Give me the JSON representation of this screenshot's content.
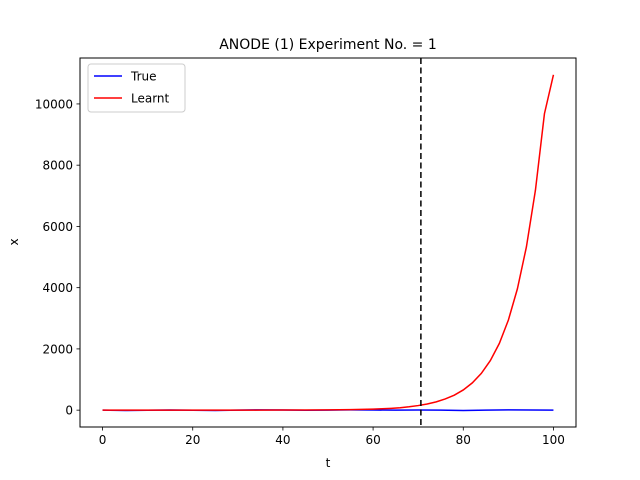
{
  "chart_data": {
    "type": "line",
    "title": "ANODE (1) Experiment No. = 1",
    "xlabel": "t",
    "ylabel": "x",
    "xlim": [
      -5,
      105
    ],
    "ylim": [
      -550,
      11500
    ],
    "xticks": [
      0,
      20,
      40,
      60,
      80,
      100
    ],
    "yticks": [
      0,
      2000,
      4000,
      6000,
      8000,
      10000
    ],
    "grid": false,
    "legend_position": "top-left",
    "vline": {
      "x": 70.6,
      "style": "dashed",
      "color": "#000000"
    },
    "series": [
      {
        "name": "True",
        "color": "#0000ff",
        "x": [
          0,
          5,
          10,
          15,
          20,
          25,
          30,
          35,
          40,
          45,
          50,
          55,
          60,
          65,
          70,
          75,
          80,
          85,
          90,
          95,
          100
        ],
        "y": [
          0,
          -10,
          -5,
          5,
          -5,
          -10,
          0,
          10,
          5,
          -5,
          0,
          10,
          5,
          0,
          5,
          0,
          -10,
          0,
          10,
          5,
          0
        ]
      },
      {
        "name": "Learnt",
        "color": "#ff0000",
        "x": [
          0,
          10,
          20,
          30,
          40,
          45,
          50,
          55,
          60,
          62,
          64,
          66,
          68,
          70,
          72,
          74,
          76,
          78,
          80,
          82,
          84,
          86,
          88,
          90,
          92,
          94,
          96,
          98,
          100
        ],
        "y": [
          0,
          0,
          1,
          2,
          4,
          6,
          10,
          18,
          35,
          45,
          60,
          80,
          110,
          150,
          200,
          270,
          365,
          490,
          660,
          890,
          1200,
          1620,
          2180,
          2940,
          3960,
          5330,
          7180,
          9680,
          10950
        ]
      }
    ]
  }
}
